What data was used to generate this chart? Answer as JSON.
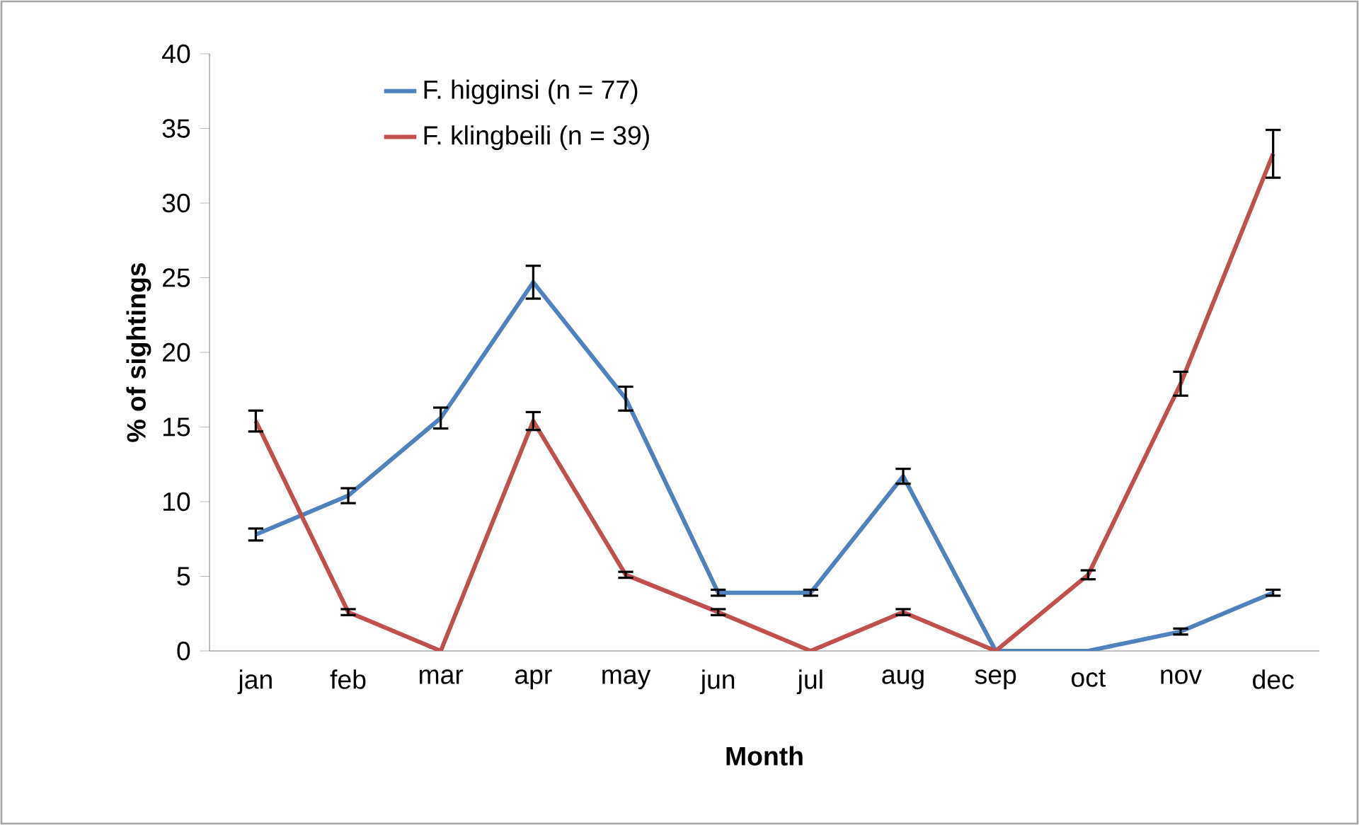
{
  "chart_data": {
    "type": "line",
    "xlabel": "Month",
    "ylabel": "% of sightings",
    "categories": [
      "jan",
      "feb",
      "mar",
      "apr",
      "may",
      "jun",
      "jul",
      "aug",
      "sep",
      "oct",
      "nov",
      "dec"
    ],
    "series": [
      {
        "name": "F. higginsi (n = 77)",
        "color": "#4f81bd",
        "values": [
          7.8,
          10.4,
          15.6,
          24.7,
          16.9,
          3.9,
          3.9,
          11.7,
          0,
          0,
          1.3,
          3.9
        ],
        "errors": [
          0.4,
          0.5,
          0.7,
          1.1,
          0.8,
          0.2,
          0.2,
          0.5,
          null,
          null,
          0.2,
          0.2
        ]
      },
      {
        "name": "F. klingbeili (n = 39)",
        "color": "#c0504d",
        "values": [
          15.4,
          2.6,
          0,
          15.4,
          5.1,
          2.6,
          0,
          2.6,
          0,
          5.1,
          17.9,
          33.3
        ],
        "errors": [
          0.7,
          0.2,
          null,
          0.6,
          0.2,
          0.2,
          null,
          0.2,
          null,
          0.3,
          0.8,
          1.6
        ]
      }
    ],
    "ylim": [
      0,
      40
    ],
    "yticks": [
      0,
      5,
      10,
      15,
      20,
      25,
      30,
      35,
      40
    ],
    "grid": false,
    "legend": "top left",
    "marker": "none",
    "line_style": "solid"
  }
}
